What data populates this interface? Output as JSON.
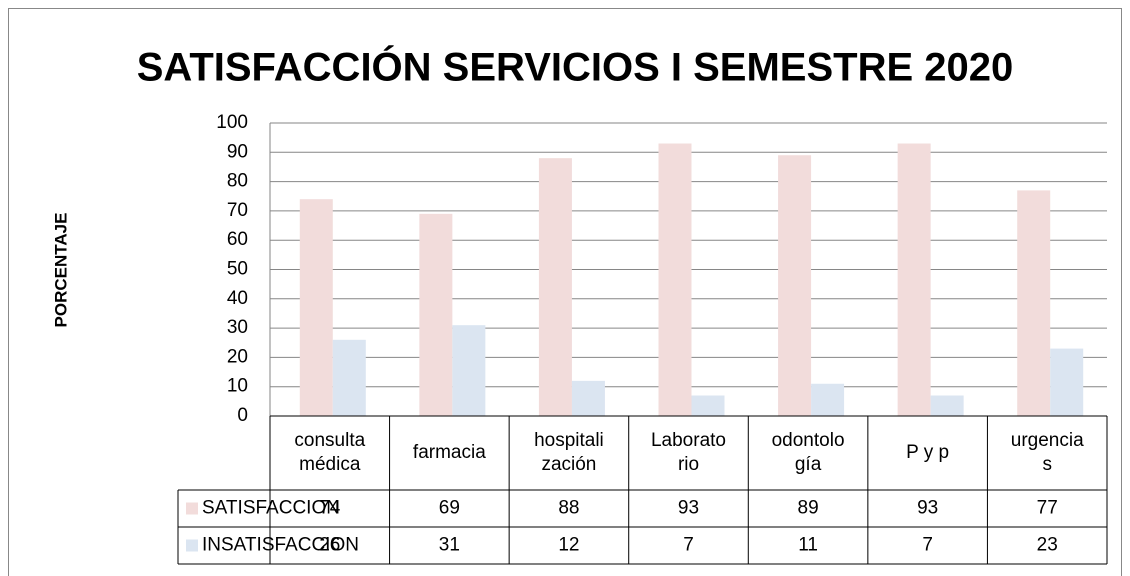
{
  "chart_data": {
    "type": "bar",
    "title": "SATISFACCIÓN SERVICIOS I SEMESTRE 2020",
    "y_label": "PORCENTAJE",
    "categories": [
      [
        "consulta",
        "médica"
      ],
      [
        "farmacia"
      ],
      [
        "hospitali",
        "zación"
      ],
      [
        "Laborato",
        "rio"
      ],
      [
        "odontolo",
        "gía"
      ],
      [
        "P y p"
      ],
      [
        "urgencia",
        "s"
      ]
    ],
    "series": [
      {
        "name": "SATISFACCION",
        "color": "#f2dcdb",
        "values": [
          74,
          69,
          88,
          93,
          89,
          93,
          77
        ]
      },
      {
        "name": "INSATISFACCION",
        "color": "#dbe5f1",
        "values": [
          26,
          31,
          12,
          7,
          11,
          7,
          23
        ]
      }
    ],
    "ylim": [
      0,
      100
    ],
    "yticks": [
      0,
      10,
      20,
      30,
      40,
      50,
      60,
      70,
      80,
      90,
      100
    ],
    "grid": true,
    "data_table": true
  }
}
